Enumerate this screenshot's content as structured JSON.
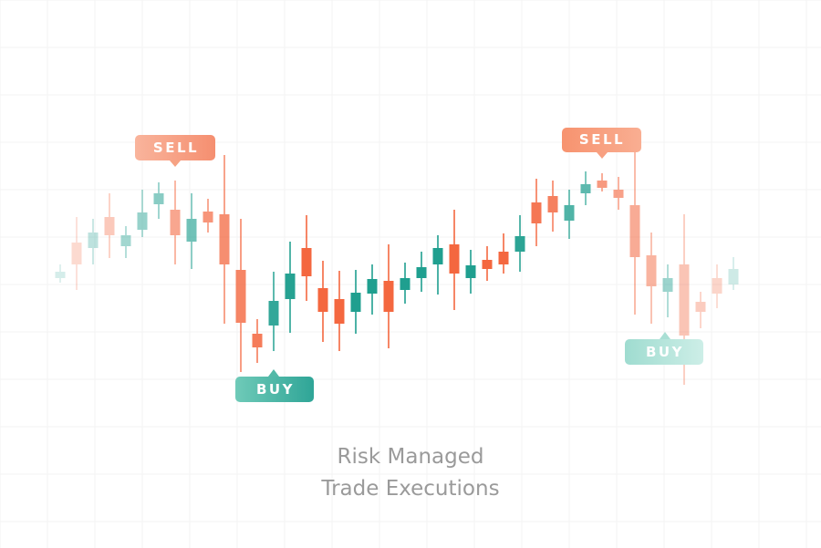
{
  "callouts": [
    {
      "label": "SELL"
    },
    {
      "label": "BUY"
    },
    {
      "label": "SELL"
    },
    {
      "label": "BUY"
    }
  ],
  "caption": {
    "line1": "Risk Managed",
    "line2": "Trade Executions"
  }
}
